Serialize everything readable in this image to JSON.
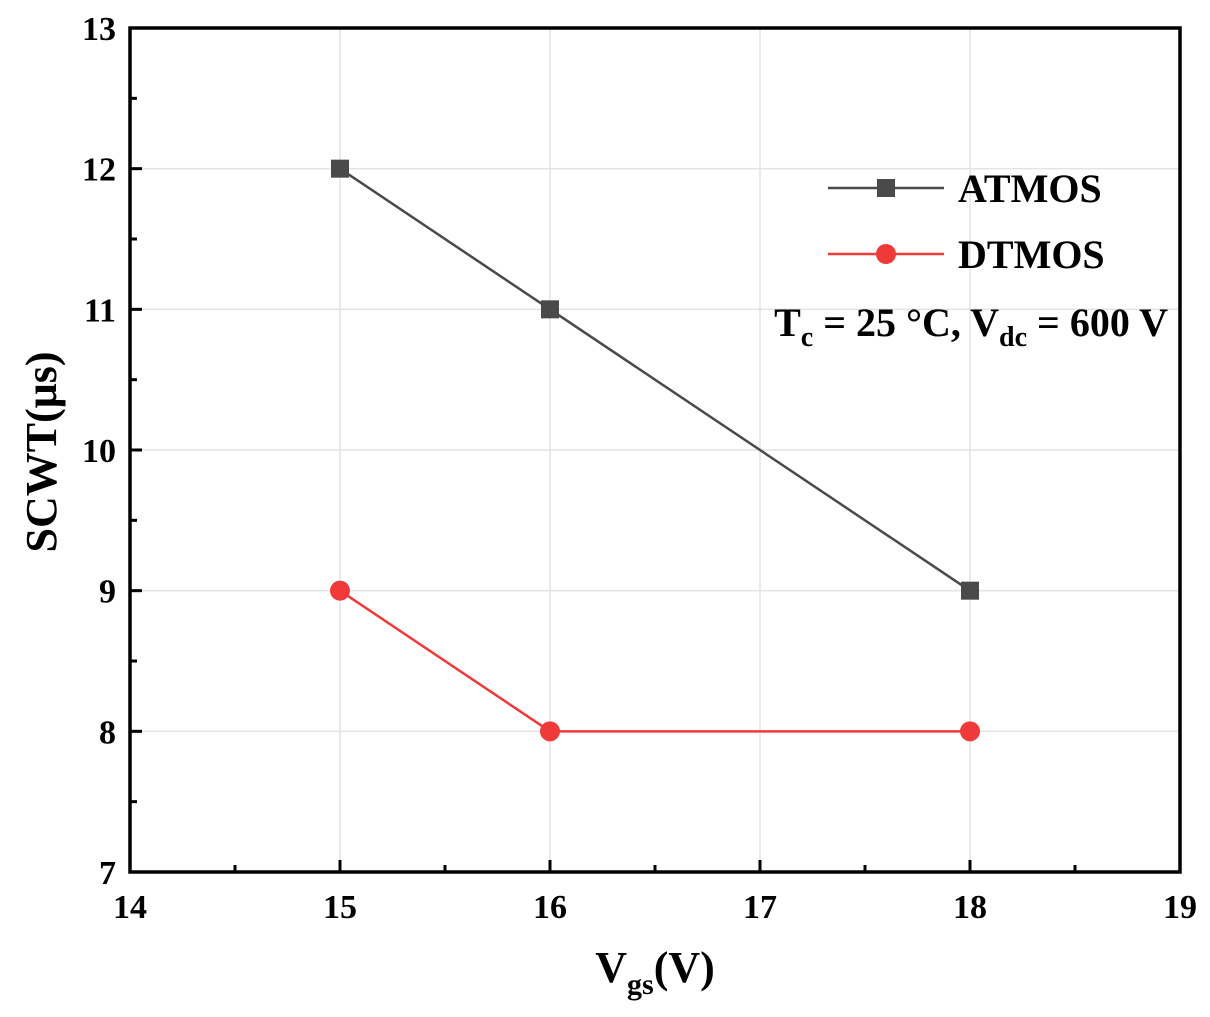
{
  "chart_data": {
    "type": "line",
    "xlabel": {
      "main": "V",
      "sub": "gs",
      "unit": "(V)"
    },
    "ylabel": "SCWT(μs)",
    "xlim": [
      14,
      19
    ],
    "ylim": [
      7,
      13
    ],
    "xticks": [
      14,
      15,
      16,
      17,
      18,
      19
    ],
    "yticks": [
      7,
      8,
      9,
      10,
      11,
      12,
      13
    ],
    "grid": true,
    "legend_position": "top-right",
    "series": [
      {
        "name": "ATMOS",
        "color": "#4a4a4a",
        "marker": "square",
        "x": [
          15,
          16,
          18
        ],
        "values": [
          12,
          11,
          9
        ]
      },
      {
        "name": "DTMOS",
        "color": "#f03a3a",
        "marker": "circle",
        "x": [
          15,
          16,
          18
        ],
        "values": [
          9,
          8,
          8
        ]
      }
    ],
    "annotation": {
      "t_main": "T",
      "t_sub": "c",
      "t_rest": " = 25 °C, V",
      "v_sub": "dc",
      "v_rest": " = 600 V"
    }
  }
}
